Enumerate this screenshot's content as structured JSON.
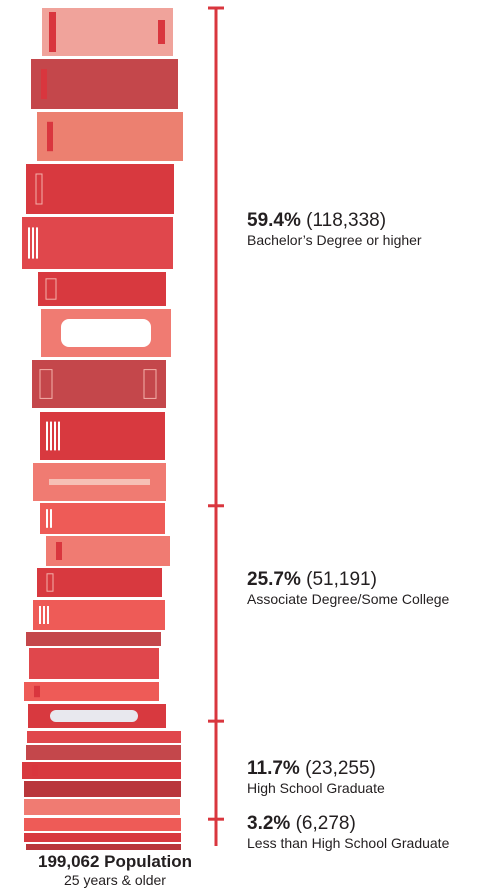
{
  "chart_data": {
    "type": "bar",
    "categories": [
      "Bachelor’s Degree or higher",
      "Associate Degree/Some College",
      "High School Graduate",
      "Less than High School Graduate"
    ],
    "percent_labels": [
      "59.4%",
      "25.7%",
      "11.7%",
      "3.2%"
    ],
    "count_labels": [
      "(118,338)",
      "(51,191)",
      "(23,255)",
      "(6,278)"
    ],
    "percents": [
      59.4,
      25.7,
      11.7,
      3.2
    ],
    "values": [
      118338,
      51191,
      23255,
      6278
    ],
    "total": "199,062 Population",
    "total_value": 199062,
    "subtitle": "25 years & older"
  },
  "colors": {
    "bracket": "#d9363e",
    "book_palette": [
      "#f0a39b",
      "#c4474b",
      "#ec8070",
      "#d8393f",
      "#e0474c",
      "#f07b72",
      "#ee5b57",
      "#b9363b"
    ]
  }
}
